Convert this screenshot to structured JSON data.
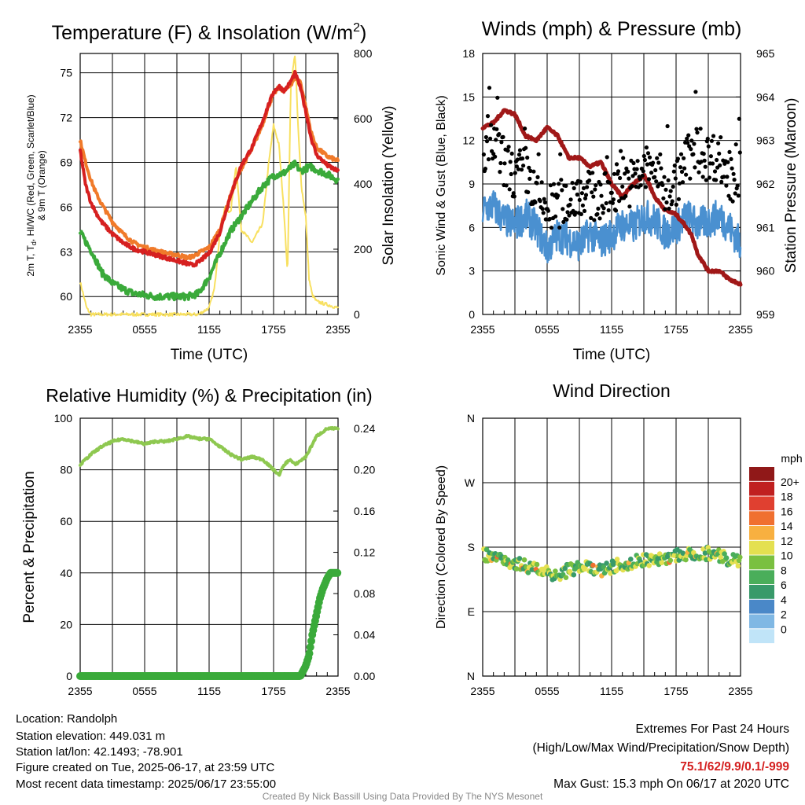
{
  "colors": {
    "temp": "#d62020",
    "dewpoint": "#3aaa3a",
    "heat_index": "#d62020",
    "temp9m": "#f07a2a",
    "solar": "#f8e060",
    "wind": "#4a90d0",
    "gust": "#000000",
    "pressure": "#a01818",
    "rh": "#8ec850",
    "precip": "#3aaa3a"
  },
  "panels": {
    "temperature": {
      "title_main": "Temperature (F) & Insolation (W/m",
      "title_sup": "2",
      "title_end": ")",
      "ylabel_line1": "2m T, T",
      "ylabel_sub": "d",
      "ylabel_line1_end": ", HI/WC (Red, Green, Scarlet/Blue)",
      "ylabel_line2": "& 9m T (Orange)",
      "y2label": "Solar Insolation (Yellow)",
      "xlabel": "Time (UTC)"
    },
    "winds": {
      "title": "Winds (mph) & Pressure (mb)",
      "ylabel": "Sonic Wind & Gust (Blue, Black)",
      "y2label": "Station Pressure (Maroon)",
      "xlabel": "Time (UTC)"
    },
    "humidity": {
      "title": "Relative Humidity (%) & Precipitation (in)",
      "ylabel": "Percent & Precipitation"
    },
    "direction": {
      "title": "Wind Direction",
      "ylabel": "Direction (Colored By Speed)",
      "colorbar_unit": "mph"
    }
  },
  "chart_data": [
    {
      "type": "line",
      "title": "Temperature (F) & Insolation (W/m2)",
      "xlabel": "Time (UTC)",
      "ylabel": "2m T, Td, HI/WC (Red, Green, Scarlet/Blue) & 9m T (Orange)",
      "y2label": "Solar Insolation (Yellow)",
      "x_ticks": [
        "2355",
        "0555",
        "1155",
        "1755",
        "2355"
      ],
      "y_ticks": [
        "60",
        "63",
        "66",
        "69",
        "72",
        "75"
      ],
      "y2_ticks": [
        "0",
        "200",
        "400",
        "600",
        "800"
      ],
      "xlim": [
        0,
        24
      ],
      "ylim": [
        58.8,
        76.3
      ],
      "y2lim": [
        0,
        800
      ],
      "series": [
        {
          "name": "2m T",
          "color": "#d62020",
          "axis": "y",
          "x": [
            0,
            0.5,
            1,
            1.5,
            2,
            3,
            4,
            5,
            6,
            7,
            8,
            9,
            10,
            10.5,
            11,
            12,
            13,
            14,
            15,
            16,
            17,
            17.5,
            18,
            18.5,
            19,
            19.5,
            20,
            20.5,
            21,
            21.5,
            22,
            23,
            24
          ],
          "y": [
            69.8,
            67.5,
            66.3,
            65.6,
            65.0,
            64.2,
            63.6,
            63.2,
            63.0,
            62.8,
            62.6,
            62.4,
            62.2,
            62.1,
            62.3,
            62.9,
            64.3,
            66.8,
            68.8,
            70.0,
            71.8,
            72.8,
            73.7,
            74.1,
            73.8,
            74.3,
            75.0,
            74.0,
            72.4,
            70.6,
            69.5,
            68.8,
            68.4
          ]
        },
        {
          "name": "9m T",
          "color": "#f07a2a",
          "axis": "y",
          "x": [
            0,
            0.5,
            1,
            1.5,
            2,
            3,
            4,
            5,
            6,
            7,
            8,
            9,
            10,
            10.5,
            11,
            12,
            13,
            14,
            15,
            16,
            17,
            17.5,
            18,
            18.5,
            19,
            19.5,
            20,
            20.5,
            21,
            21.5,
            22,
            23,
            24
          ],
          "y": [
            70.5,
            69.0,
            67.8,
            66.9,
            66.2,
            65.0,
            64.2,
            63.6,
            63.3,
            63.1,
            62.9,
            62.8,
            62.6,
            62.7,
            62.9,
            63.3,
            64.5,
            66.8,
            68.6,
            69.9,
            71.6,
            72.7,
            73.6,
            74.0,
            73.8,
            74.1,
            74.7,
            74.4,
            72.7,
            71.0,
            70.0,
            69.4,
            69.1
          ]
        },
        {
          "name": "2m Td",
          "color": "#3aaa3a",
          "axis": "y",
          "x": [
            0,
            1,
            1.5,
            2,
            3,
            4,
            5,
            6,
            7,
            8,
            9,
            10,
            11,
            12,
            13,
            14,
            15,
            16,
            17,
            18,
            19,
            19.5,
            20,
            20.5,
            21,
            21.5,
            22,
            23,
            24
          ],
          "y": [
            64.3,
            63.1,
            62.4,
            61.6,
            60.9,
            60.5,
            60.2,
            60.1,
            60.0,
            60.0,
            60.0,
            60.0,
            60.2,
            61.3,
            62.9,
            64.4,
            65.4,
            66.4,
            67.4,
            68.1,
            68.3,
            68.6,
            68.9,
            68.4,
            68.6,
            68.7,
            68.5,
            68.2,
            67.8
          ]
        },
        {
          "name": "Solar Insolation",
          "color": "#f8e060",
          "axis": "y2",
          "x": [
            0,
            0.3,
            0.6,
            1,
            1.5,
            2,
            4,
            6,
            8,
            10,
            11,
            12,
            12.5,
            13,
            13.5,
            14,
            14.5,
            15,
            16,
            17,
            17.5,
            18,
            18.5,
            19,
            19.3,
            19.6,
            20,
            20.3,
            20.6,
            21,
            21.3,
            21.6,
            22,
            23,
            24
          ],
          "y": [
            100,
            60,
            20,
            0,
            0,
            0,
            0,
            0,
            0,
            0,
            0,
            20,
            80,
            250,
            330,
            310,
            460,
            260,
            220,
            280,
            450,
            580,
            520,
            300,
            120,
            700,
            800,
            560,
            390,
            300,
            110,
            60,
            40,
            30,
            20
          ]
        }
      ]
    },
    {
      "type": "line",
      "title": "Winds (mph) & Pressure (mb)",
      "xlabel": "Time (UTC)",
      "ylabel": "Sonic Wind & Gust (Blue, Black)",
      "y2label": "Station Pressure (Maroon)",
      "x_ticks": [
        "2355",
        "0555",
        "1155",
        "1755",
        "2355"
      ],
      "y_ticks": [
        "0",
        "3",
        "6",
        "9",
        "12",
        "15",
        "18"
      ],
      "y2_ticks": [
        "959",
        "960",
        "961",
        "962",
        "963",
        "964",
        "965"
      ],
      "xlim": [
        0,
        24
      ],
      "ylim": [
        0,
        18
      ],
      "y2lim": [
        959,
        965
      ],
      "series": [
        {
          "name": "Sonic Wind",
          "color": "#4a90d0",
          "axis": "y",
          "x": [
            0,
            1,
            2,
            3,
            4,
            5,
            6,
            7,
            8,
            9,
            10,
            11,
            12,
            13,
            14,
            15,
            16,
            17,
            18,
            19,
            20,
            21,
            22,
            23,
            24
          ],
          "y": [
            7.2,
            7.5,
            6.5,
            6.2,
            6.8,
            6.0,
            4.5,
            5.5,
            5.2,
            4.8,
            5.6,
            5.0,
            5.5,
            6.2,
            6.0,
            6.8,
            6.5,
            5.6,
            6.0,
            6.8,
            6.2,
            6.4,
            6.8,
            6.0,
            4.8
          ]
        },
        {
          "name": "Gust",
          "color": "#000000",
          "axis": "y",
          "style": "points",
          "x": [
            0,
            1,
            2,
            3,
            4,
            5,
            6,
            7,
            8,
            9,
            10,
            11,
            12,
            13,
            14,
            15,
            16,
            17,
            18,
            19,
            20,
            21,
            22,
            23,
            24
          ],
          "y": [
            10.2,
            11.8,
            10.5,
            9.5,
            10.0,
            8.0,
            7.2,
            7.6,
            7.8,
            8.6,
            8.2,
            8.0,
            8.4,
            9.4,
            9.0,
            10.0,
            10.2,
            8.6,
            9.0,
            10.8,
            11.4,
            10.8,
            11.0,
            9.2,
            9.6
          ]
        },
        {
          "name": "Station Pressure",
          "color": "#a01818",
          "axis": "y2",
          "x": [
            0,
            1,
            2,
            3,
            4,
            5,
            6,
            7,
            8,
            9,
            10,
            11,
            12,
            13,
            14,
            15,
            15.5,
            16,
            17,
            18,
            19,
            19.5,
            20,
            21,
            22,
            23,
            24
          ],
          "y": [
            963.3,
            963.4,
            963.7,
            963.6,
            963.1,
            963.0,
            963.3,
            963.1,
            962.6,
            962.6,
            962.4,
            962.5,
            962.0,
            961.7,
            962.0,
            962.2,
            962.0,
            961.7,
            961.4,
            961.3,
            961.0,
            960.8,
            960.4,
            960.0,
            960.0,
            959.8,
            959.7
          ]
        }
      ]
    },
    {
      "type": "line",
      "title": "Relative Humidity (%) & Precipitation (in)",
      "ylabel": "Percent & Precipitation",
      "x_ticks": [
        "2355",
        "0555",
        "1155",
        "1755",
        "2355"
      ],
      "y_ticks": [
        "0",
        "20",
        "40",
        "60",
        "80",
        "100"
      ],
      "y2_ticks": [
        "0.00",
        "0.04",
        "0.08",
        "0.12",
        "0.16",
        "0.20",
        "0.24"
      ],
      "xlim": [
        0,
        24
      ],
      "ylim": [
        0,
        100
      ],
      "y2lim": [
        0,
        0.25
      ],
      "series": [
        {
          "name": "Relative Humidity",
          "color": "#8ec850",
          "axis": "y",
          "x": [
            0,
            1,
            2,
            3,
            4,
            5,
            6,
            7,
            8,
            9,
            10,
            11,
            12,
            13,
            14,
            15,
            16,
            17,
            18,
            18.5,
            19,
            19.5,
            20,
            21,
            22,
            23,
            24
          ],
          "y": [
            82,
            86,
            89,
            91,
            92,
            91,
            90,
            91,
            91,
            92,
            93,
            92,
            92,
            89,
            86,
            84,
            85,
            84,
            80,
            78,
            82,
            84,
            82,
            85,
            93,
            96,
            96
          ]
        },
        {
          "name": "Precipitation",
          "color": "#3aaa3a",
          "axis": "y2",
          "style": "points",
          "x": [
            0,
            2,
            4,
            6,
            8,
            10,
            12,
            14,
            16,
            18,
            20.5,
            21,
            21.3,
            21.6,
            22,
            22.3,
            22.6,
            23,
            23.3,
            23.6,
            24
          ],
          "y": [
            0,
            0,
            0,
            0,
            0,
            0,
            0,
            0,
            0,
            0,
            0.0,
            0.01,
            0.02,
            0.04,
            0.06,
            0.075,
            0.085,
            0.095,
            0.1,
            0.1,
            0.1
          ]
        }
      ]
    },
    {
      "type": "scatter",
      "title": "Wind Direction",
      "ylabel": "Direction (Colored By Speed)",
      "x_ticks": [
        "2355",
        "0555",
        "1155",
        "1755",
        "2355"
      ],
      "y_ticks": [
        "N",
        "E",
        "S",
        "W",
        "N"
      ],
      "xlim": [
        0,
        24
      ],
      "ylim": [
        0,
        360
      ],
      "colorbar": {
        "unit": "mph",
        "labels": [
          "0",
          "2",
          "4",
          "6",
          "8",
          "10",
          "12",
          "14",
          "16",
          "18",
          "20+"
        ],
        "colors": [
          "#c0e4f8",
          "#80b8e4",
          "#4a88c8",
          "#389a6a",
          "#4aae5a",
          "#7ac040",
          "#e4e050",
          "#f8b040",
          "#f07030",
          "#e04030",
          "#c02020",
          "#901818"
        ]
      },
      "x": [
        0,
        1,
        2,
        3,
        4,
        5,
        6,
        7,
        8,
        9,
        10,
        11,
        12,
        13,
        14,
        15,
        16,
        17,
        18,
        19,
        20,
        21,
        22,
        23,
        24
      ],
      "y": [
        170,
        168,
        163,
        158,
        154,
        150,
        145,
        142,
        148,
        152,
        150,
        148,
        152,
        156,
        160,
        162,
        163,
        165,
        168,
        170,
        165,
        172,
        168,
        162,
        158
      ]
    }
  ],
  "x_tick_labels": [
    "2355",
    "0555",
    "1155",
    "1755",
    "2355"
  ],
  "colorbar": {
    "labels": [
      "0",
      "2",
      "4",
      "6",
      "8",
      "10",
      "12",
      "14",
      "16",
      "18",
      "20+"
    ],
    "colors": [
      "#c0e4f8",
      "#80b8e4",
      "#4a88c8",
      "#389a6a",
      "#4aae5a",
      "#7ac040",
      "#e4e050",
      "#f8b040",
      "#f07030",
      "#e04030",
      "#c02020",
      "#901818"
    ]
  },
  "info": {
    "location": "Location: Randolph",
    "elevation": "Station elevation: 449.031 m",
    "latlon": "Station lat/lon: 42.1493; -78.901",
    "created": "Figure created on Tue, 2025-06-17, at 23:59 UTC",
    "recent": "Most recent data timestamp: 2025/06/17 23:55:00"
  },
  "extremes": {
    "title": "Extremes For Past 24 Hours",
    "subtitle": "(High/Low/Max Wind/Precipitation/Snow Depth)",
    "values": "75.1/62/9.9/0.1/-999",
    "max_gust": "Max Gust: 15.3 mph On 06/17 at 2020 UTC"
  },
  "credit": "Created By Nick Bassill Using Data Provided By The NYS Mesonet"
}
